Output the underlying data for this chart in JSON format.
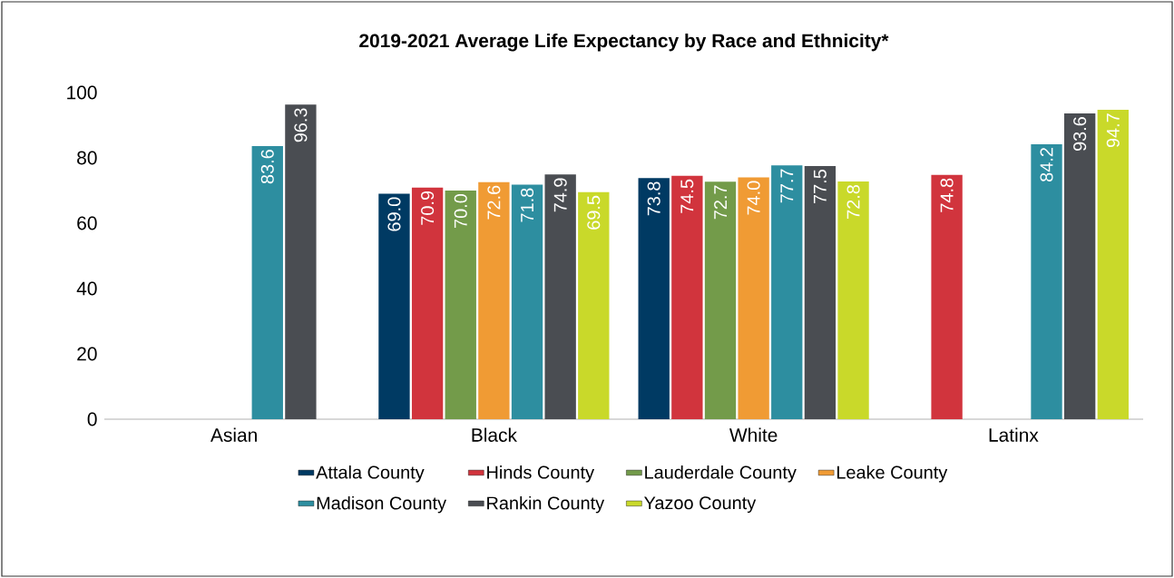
{
  "chart_data": {
    "type": "bar",
    "title": "2019-2021 Average Life Expectancy by Race and Ethnicity*",
    "categories": [
      "Asian",
      "Black",
      "White",
      "Latinx"
    ],
    "ylim": [
      0,
      100
    ],
    "yticks": [
      0,
      20,
      40,
      60,
      80,
      100
    ],
    "grid": false,
    "legend": "bottom",
    "series": [
      {
        "name": "Attala County",
        "color": "#003a63",
        "values": [
          null,
          69.0,
          73.8,
          null
        ],
        "value_labels": [
          null,
          "69.0",
          "73.8",
          null
        ]
      },
      {
        "name": "Hinds County",
        "color": "#d1343d",
        "values": [
          null,
          70.9,
          74.5,
          74.8
        ],
        "value_labels": [
          null,
          "70.9",
          "74.5",
          "74.8"
        ]
      },
      {
        "name": "Lauderdale County",
        "color": "#739b4a",
        "values": [
          null,
          70.0,
          72.7,
          null
        ],
        "value_labels": [
          null,
          "70.0",
          "72.7",
          null
        ]
      },
      {
        "name": "Leake County",
        "color": "#f09b34",
        "values": [
          null,
          72.6,
          74.0,
          null
        ],
        "value_labels": [
          null,
          "72.6",
          "74.0",
          null
        ]
      },
      {
        "name": "Madison County",
        "color": "#2d8ea0",
        "values": [
          83.6,
          71.8,
          77.7,
          84.2
        ],
        "value_labels": [
          "83.6",
          "71.8",
          "77.7",
          "84.2"
        ]
      },
      {
        "name": "Rankin County",
        "color": "#4a4d52",
        "values": [
          96.3,
          74.9,
          77.5,
          93.6
        ],
        "value_labels": [
          "96.3",
          "74.9",
          "77.5",
          "93.6"
        ]
      },
      {
        "name": "Yazoo County",
        "color": "#c9d92a",
        "values": [
          null,
          69.5,
          72.8,
          94.7
        ],
        "value_labels": [
          null,
          "69.5",
          "72.8",
          "94.7"
        ]
      }
    ]
  }
}
